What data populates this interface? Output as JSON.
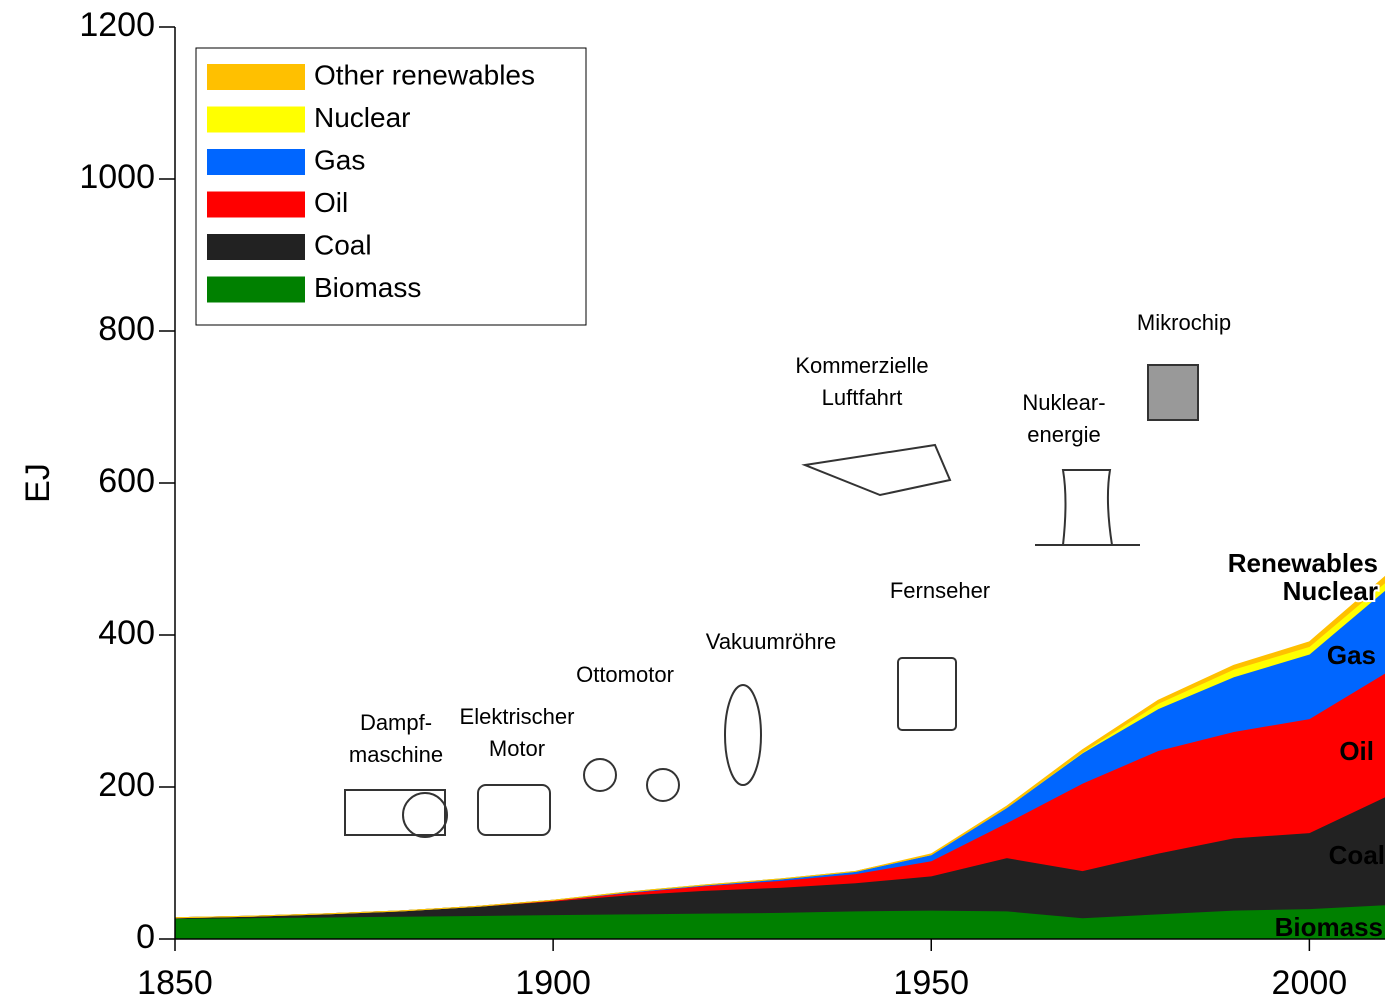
{
  "chart_data": {
    "type": "stacked_area",
    "y_label": "EJ",
    "x": [
      1850,
      1860,
      1870,
      1880,
      1890,
      1900,
      1910,
      1920,
      1930,
      1940,
      1950,
      1960,
      1970,
      1980,
      1990,
      2000,
      2010
    ],
    "series": [
      {
        "name": "Biomass",
        "color": "#008000",
        "values": [
          27,
          28,
          29,
          30,
          31,
          32,
          33,
          34,
          35,
          37,
          38,
          37,
          28,
          33,
          38,
          40,
          45
        ]
      },
      {
        "name": "Coal",
        "color": "#222222",
        "values": [
          1,
          2,
          4,
          7,
          12,
          18,
          25,
          30,
          33,
          37,
          45,
          70,
          62,
          80,
          95,
          100,
          142
        ]
      },
      {
        "name": "Oil",
        "color": "#ff0000",
        "values": [
          0,
          0,
          0,
          0,
          0,
          1,
          3,
          6,
          9,
          12,
          20,
          46,
          115,
          135,
          140,
          150,
          163
        ]
      },
      {
        "name": "Gas",
        "color": "#0066ff",
        "values": [
          0,
          0,
          0,
          0,
          0,
          0,
          1,
          1,
          2,
          3,
          8,
          20,
          40,
          55,
          72,
          85,
          109
        ]
      },
      {
        "name": "Nuclear",
        "color": "#ffff00",
        "values": [
          0,
          0,
          0,
          0,
          0,
          0,
          0,
          0,
          0,
          0,
          0,
          0,
          1,
          7,
          10,
          10,
          10
        ]
      },
      {
        "name": "Other renewables",
        "color": "#ffc000",
        "values": [
          0,
          0,
          0,
          0,
          0,
          0,
          0,
          0,
          0,
          0,
          1,
          2,
          3,
          4,
          5,
          6,
          8
        ]
      }
    ],
    "xlim": [
      1850,
      2010
    ],
    "ylim": [
      0,
      1200
    ],
    "xticks": [
      1850,
      1900,
      1950,
      2000
    ],
    "yticks": [
      0,
      200,
      400,
      600,
      800,
      1000,
      1200
    ],
    "area_labels": [
      "Renewables",
      "Nuclear",
      "Gas",
      "Oil",
      "Coal",
      "Biomass"
    ],
    "annotations": [
      {
        "lines": [
          "Dampf-",
          "maschine"
        ]
      },
      {
        "lines": [
          "Elektrischer",
          "Motor"
        ]
      },
      {
        "lines": [
          "Ottomotor"
        ]
      },
      {
        "lines": [
          "Vakuumröhre"
        ]
      },
      {
        "lines": [
          "Fernseher"
        ]
      },
      {
        "lines": [
          "Kommerzielle",
          "Luftfahrt"
        ]
      },
      {
        "lines": [
          "Nuklear-",
          "energie"
        ]
      },
      {
        "lines": [
          "Mikrochip"
        ]
      }
    ]
  }
}
